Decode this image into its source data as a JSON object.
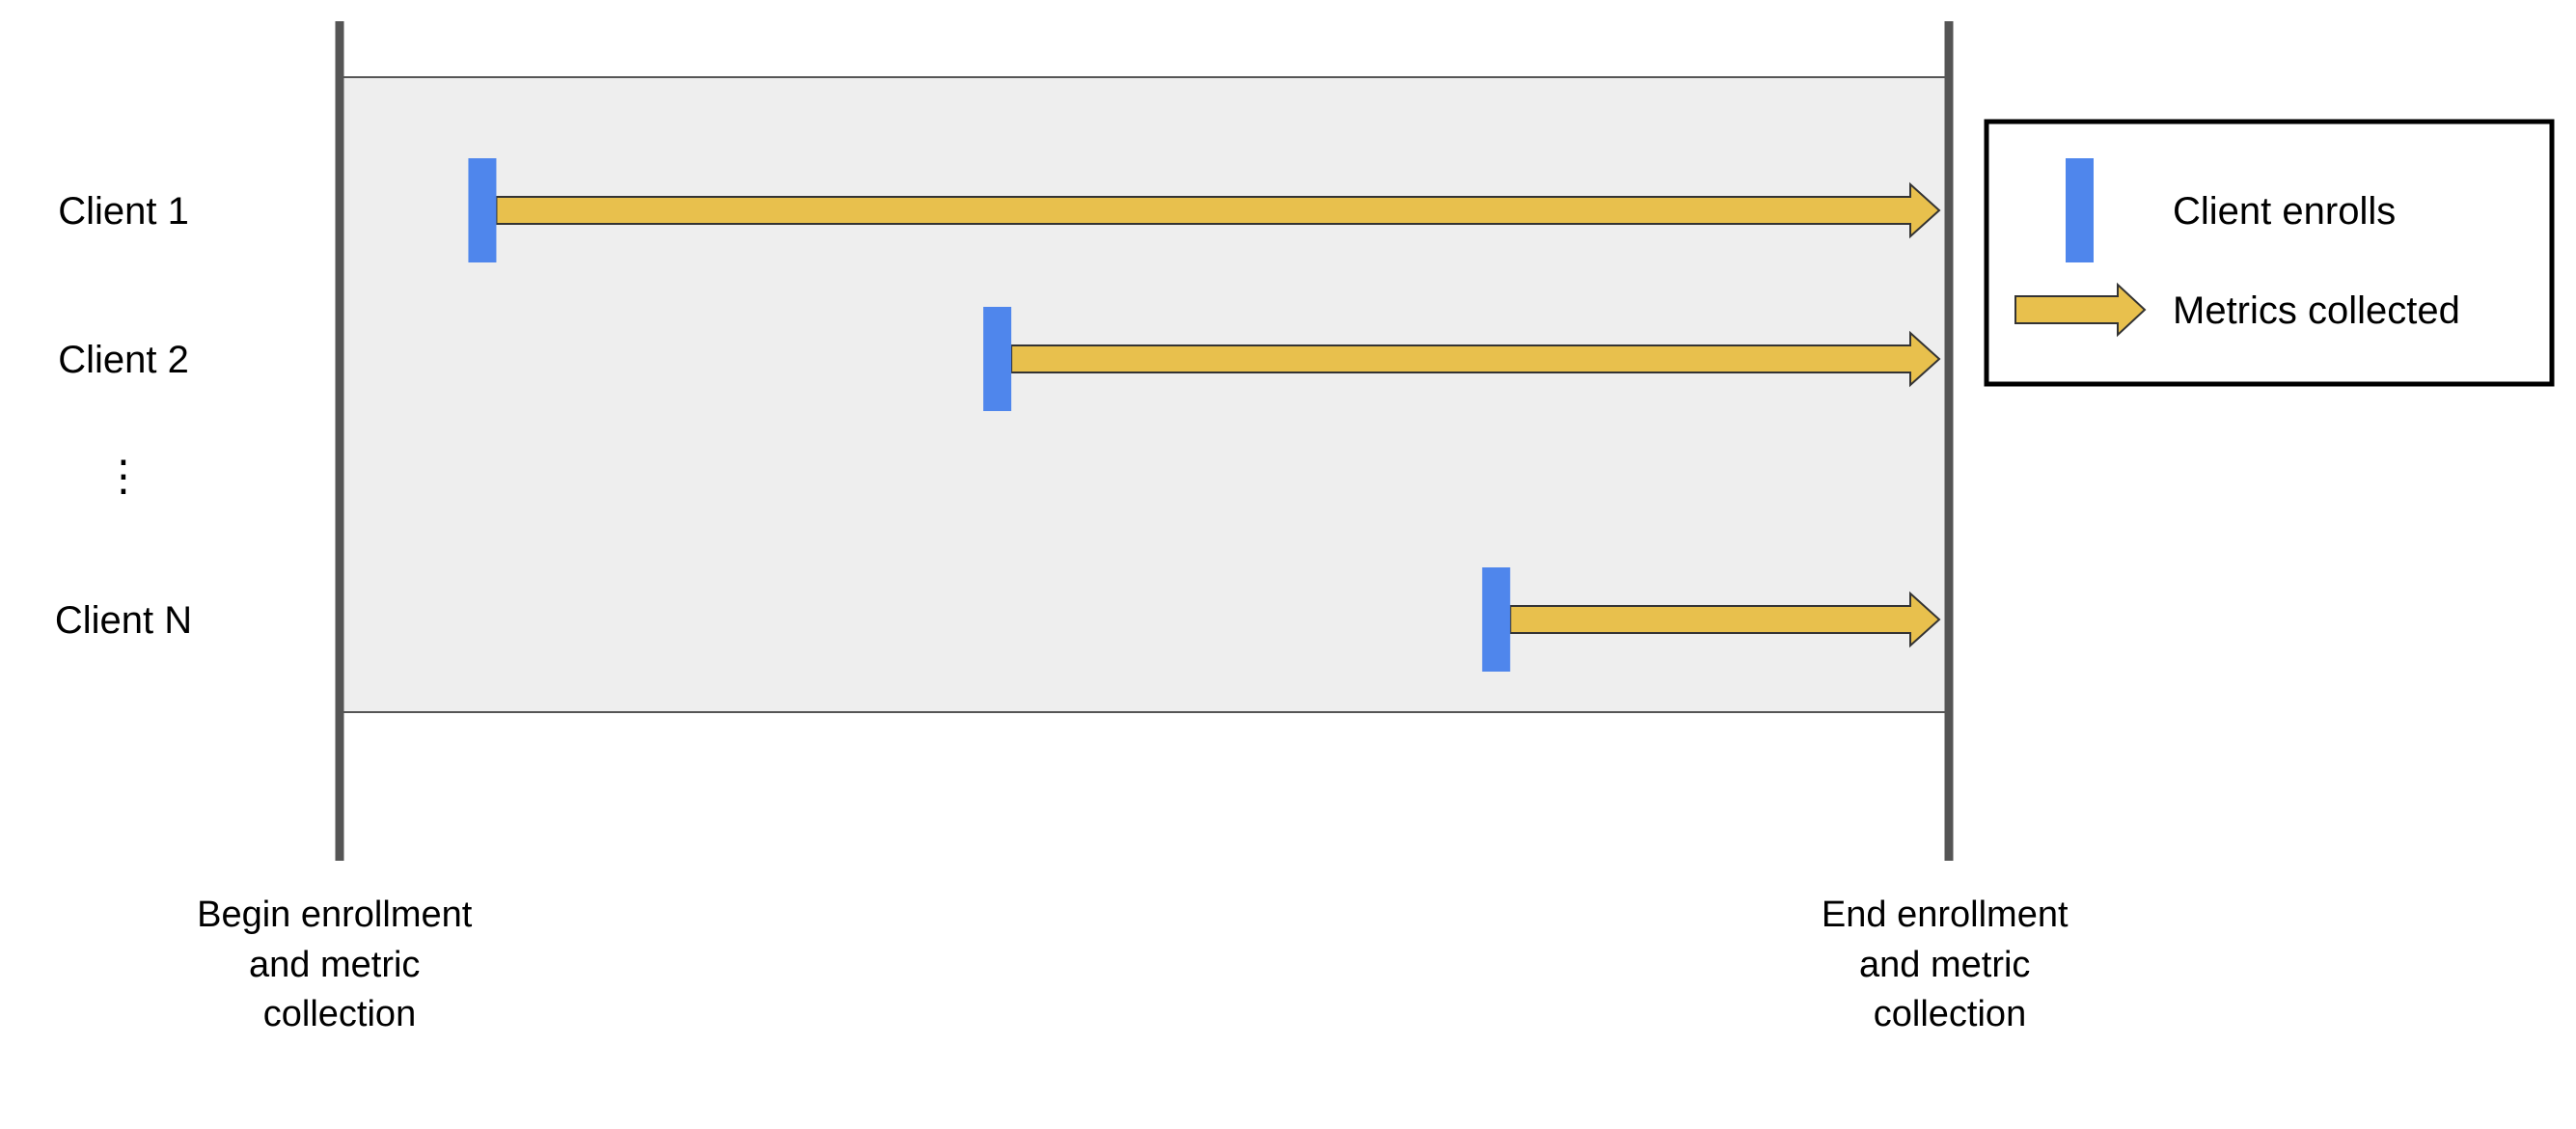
{
  "colors": {
    "panel_fill": "#eeeeee",
    "panel_border": "#555555",
    "boundary_line": "#555555",
    "enroll_marker": "#4f86ec",
    "metrics_arrow": "#e8c04d",
    "arrow_outline": "#333333",
    "legend_border": "#000000",
    "text": "#000000"
  },
  "rows": [
    {
      "label": "Client 1",
      "enroll_position": 0.08
    },
    {
      "label": "Client 2",
      "enroll_position": 0.4
    },
    {
      "label": "⋮",
      "ellipsis": true
    },
    {
      "label": "Client N",
      "enroll_position": 0.71
    }
  ],
  "boundaries": {
    "begin": [
      "Begin enrollment",
      "and metric",
      "collection"
    ],
    "end": [
      "End enrollment",
      "and metric",
      "collection"
    ]
  },
  "legend": {
    "enroll_label": "Client enrolls",
    "metrics_label": "Metrics collected",
    "enroll_icon": "blue-bar",
    "metrics_icon": "yellow-arrow"
  }
}
